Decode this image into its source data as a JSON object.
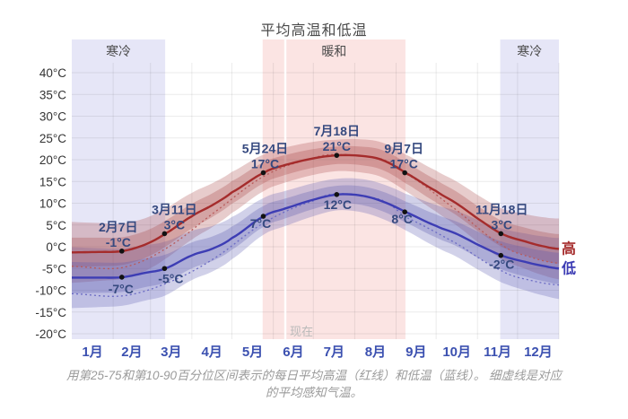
{
  "title": "平均高温和低温",
  "caption": {
    "line1": "用第25-75和第10-90百分位区间表示的每日平均高温（红线）和低温（蓝线）。 细虚线是对应",
    "line2": "的平均感知气温。"
  },
  "colors": {
    "title": "#4a4a4a",
    "caption": "#9b9b9b",
    "high_line": "#a52c2c",
    "low_line": "#3d3db4",
    "high_dotted": "#b85b5b",
    "low_dotted": "#6b6bc4",
    "high_band": "#a84848",
    "low_band": "#5858b0",
    "season_cold": "#e6e6f7",
    "season_warm": "#fbe4e3",
    "annotation_text": "#35497f",
    "month_label": "#3b50b0",
    "tick_label": "#333333",
    "season_label": "#4a4a4a",
    "now_label": "#b9b9b9",
    "dot": "#111111",
    "grid": "rgba(0,0,0,0.08)"
  },
  "chart_data": {
    "type": "line",
    "title": "平均高温和低温",
    "unit": "°C",
    "ylim": [
      -20,
      40
    ],
    "ytick_step": 5,
    "months": [
      "1月",
      "2月",
      "3月",
      "4月",
      "5月",
      "6月",
      "7月",
      "8月",
      "9月",
      "10月",
      "11月",
      "12月"
    ],
    "month_lengths": [
      31,
      28,
      31,
      30,
      31,
      30,
      31,
      31,
      30,
      31,
      30,
      31
    ],
    "seasons": [
      {
        "label": "寒冷",
        "start_day": 0,
        "end_day": 70,
        "kind": "cold"
      },
      {
        "label": "暖和",
        "start_day": 143,
        "end_day": 250,
        "kind": "warm"
      },
      {
        "label": "寒冷",
        "start_day": 321,
        "end_day": 365,
        "kind": "cold"
      }
    ],
    "now": {
      "label": "现在",
      "day": 160
    },
    "series": [
      {
        "id": "high",
        "axis_label": "高",
        "end_value": -0.5,
        "points": [
          [
            0,
            -1.3
          ],
          [
            20,
            -1.2
          ],
          [
            38,
            -1
          ],
          [
            55,
            0.5
          ],
          [
            70,
            3
          ],
          [
            90,
            7
          ],
          [
            105,
            9.5
          ],
          [
            120,
            12.5
          ],
          [
            144,
            17
          ],
          [
            160,
            18.8
          ],
          [
            181,
            20.3
          ],
          [
            199,
            21
          ],
          [
            216,
            20.9
          ],
          [
            232,
            20
          ],
          [
            250,
            17
          ],
          [
            273,
            12.8
          ],
          [
            288,
            10
          ],
          [
            304,
            6.5
          ],
          [
            322,
            3
          ],
          [
            340,
            1.2
          ],
          [
            355,
            0
          ],
          [
            365,
            -0.5
          ]
        ],
        "perceived": [
          [
            0,
            -4.5
          ],
          [
            38,
            -4.8
          ],
          [
            70,
            -0.5
          ],
          [
            105,
            7.5
          ],
          [
            144,
            16.2
          ],
          [
            181,
            20.3
          ],
          [
            199,
            21.2
          ],
          [
            232,
            20.2
          ],
          [
            250,
            16.8
          ],
          [
            288,
            8.5
          ],
          [
            322,
            0.5
          ],
          [
            345,
            -2.5
          ],
          [
            365,
            -3.8
          ]
        ],
        "band_days": [
          0,
          70,
          144,
          199,
          250,
          322,
          365
        ],
        "inner_hw": [
          3.4,
          3,
          2.4,
          2,
          2.4,
          3,
          3.4
        ],
        "outer_hw": [
          7,
          5.8,
          4.2,
          3.6,
          4.2,
          5.8,
          7
        ]
      },
      {
        "id": "low",
        "axis_label": "低",
        "end_value": -5,
        "points": [
          [
            0,
            -7.1
          ],
          [
            20,
            -7.1
          ],
          [
            38,
            -7
          ],
          [
            55,
            -6
          ],
          [
            70,
            -5
          ],
          [
            90,
            -2
          ],
          [
            105,
            -0.5
          ],
          [
            120,
            2
          ],
          [
            144,
            7
          ],
          [
            160,
            8.8
          ],
          [
            181,
            10.8
          ],
          [
            199,
            12
          ],
          [
            216,
            11.8
          ],
          [
            232,
            10.5
          ],
          [
            250,
            8
          ],
          [
            273,
            4.8
          ],
          [
            288,
            3
          ],
          [
            304,
            0.5
          ],
          [
            322,
            -2
          ],
          [
            340,
            -3.5
          ],
          [
            355,
            -4.5
          ],
          [
            365,
            -5
          ]
        ],
        "perceived": [
          [
            0,
            -10.8
          ],
          [
            38,
            -11.3
          ],
          [
            70,
            -8.5
          ],
          [
            105,
            -3
          ],
          [
            144,
            5.5
          ],
          [
            181,
            10.5
          ],
          [
            199,
            12.2
          ],
          [
            232,
            10.8
          ],
          [
            250,
            6.8
          ],
          [
            288,
            0.8
          ],
          [
            322,
            -5.5
          ],
          [
            345,
            -7.8
          ],
          [
            365,
            -8.8
          ]
        ],
        "band_days": [
          0,
          70,
          144,
          199,
          250,
          322,
          365
        ],
        "inner_hw": [
          3.6,
          3.2,
          2.4,
          2,
          2.4,
          3.2,
          3.6
        ],
        "outer_hw": [
          7,
          6.2,
          4.2,
          3.6,
          4.2,
          6.2,
          7
        ]
      }
    ],
    "annotations": [
      {
        "series": "high",
        "date": "2月7日",
        "day": 37.5,
        "value": -1,
        "label": "-1°C"
      },
      {
        "series": "high",
        "date": "3月11日",
        "day": 69.5,
        "value": 3,
        "label": "3°C"
      },
      {
        "series": "high",
        "date": "5月24日",
        "day": 143.5,
        "value": 17,
        "label": "17°C"
      },
      {
        "series": "high",
        "date": "7月18日",
        "day": 198.5,
        "value": 21,
        "label": "21°C"
      },
      {
        "series": "high",
        "date": "9月7日",
        "day": 249.5,
        "value": 17,
        "label": "17°C"
      },
      {
        "series": "high",
        "date": "11月18日",
        "day": 321.5,
        "value": 3,
        "label": "3°C"
      },
      {
        "series": "low",
        "date": null,
        "day": 37.5,
        "value": -7,
        "label": "-7°C"
      },
      {
        "series": "low",
        "date": null,
        "day": 69.5,
        "value": -5,
        "label": "-5°C"
      },
      {
        "series": "low",
        "date": null,
        "day": 143.5,
        "value": 7,
        "label": "7°C"
      },
      {
        "series": "low",
        "date": null,
        "day": 198.5,
        "value": 12,
        "label": "12°C"
      },
      {
        "series": "low",
        "date": null,
        "day": 249.5,
        "value": 8,
        "label": "8°C"
      },
      {
        "series": "low",
        "date": null,
        "day": 321.5,
        "value": -2,
        "label": "-2°C"
      }
    ]
  }
}
